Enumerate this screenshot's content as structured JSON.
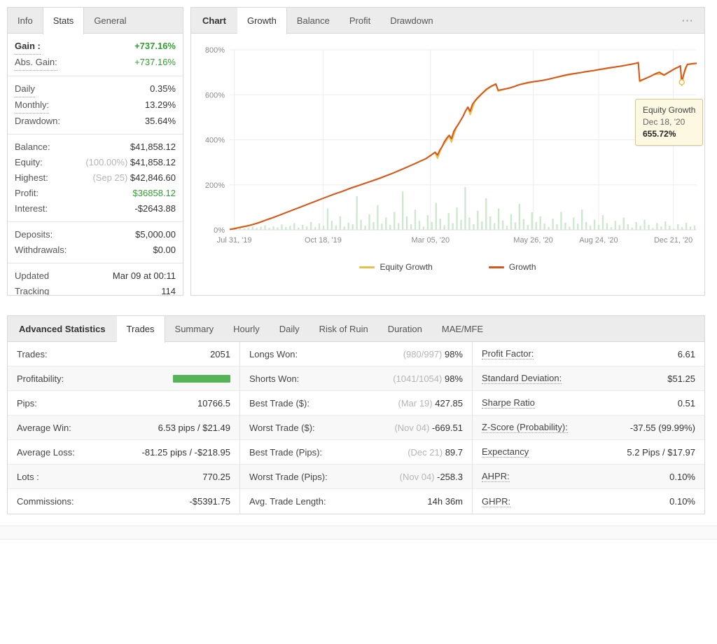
{
  "colors": {
    "green_text": "#2fa12f",
    "growth_line": "#d8551c",
    "equity_line": "#e6c14a",
    "volume_bar": "#cde8cd",
    "profitability_bar": "#56b456"
  },
  "left_panel": {
    "tabs": [
      {
        "label": "Info",
        "active": false
      },
      {
        "label": "Stats",
        "active": true
      },
      {
        "label": "General",
        "active": false
      }
    ],
    "groups": [
      {
        "rows": [
          {
            "label": "Gain :",
            "value": "+737.16%",
            "bold": true,
            "underline": true,
            "color": "green"
          },
          {
            "label": "Abs. Gain:",
            "value": "+737.16%",
            "underline": true,
            "color": "green"
          }
        ]
      },
      {
        "rows": [
          {
            "label": "Daily",
            "value": "0.35%",
            "underline": true
          },
          {
            "label": "Monthly:",
            "value": "13.29%",
            "underline": true
          },
          {
            "label": "Drawdown:",
            "value": "35.64%"
          }
        ]
      },
      {
        "rows": [
          {
            "label": "Balance:",
            "value": "$41,858.12"
          },
          {
            "label": "Equity:",
            "pre": "(100.00%)",
            "value": "$41,858.12"
          },
          {
            "label": "Highest:",
            "pre": "(Sep 25)",
            "value": "$42,846.60"
          },
          {
            "label": "Profit:",
            "value": "$36858.12",
            "color": "green"
          },
          {
            "label": "Interest:",
            "value": "-$2643.88"
          }
        ]
      },
      {
        "rows": [
          {
            "label": "Deposits:",
            "value": "$5,000.00"
          },
          {
            "label": "Withdrawals:",
            "value": "$0.00"
          }
        ]
      },
      {
        "rows": [
          {
            "label": "Updated",
            "value": "Mar 09 at 00:11"
          },
          {
            "label": "Tracking",
            "value": "114"
          }
        ]
      }
    ]
  },
  "chart_panel": {
    "title_tab": "Chart",
    "tabs": [
      {
        "label": "Growth",
        "active": true
      },
      {
        "label": "Balance",
        "active": false
      },
      {
        "label": "Profit",
        "active": false
      },
      {
        "label": "Drawdown",
        "active": false
      }
    ],
    "menu": "⋯",
    "tooltip": {
      "title": "Equity Growth",
      "date": "Dec 18, '20",
      "value": "655.72%"
    },
    "legend": [
      {
        "label": "Equity Growth",
        "color": "#e6c14a"
      },
      {
        "label": "Growth",
        "color": "#d8551c"
      }
    ]
  },
  "chart_data": {
    "type": "line",
    "title": "Growth",
    "ylabel": "%",
    "ylim": [
      0,
      800
    ],
    "yticks": [
      0,
      200,
      400,
      600,
      800
    ],
    "xtick_labels": [
      "Jul 31, '19",
      "Oct 18, '19",
      "Mar 05, '20",
      "May 26, '20",
      "Aug 24, '20",
      "Dec 21, '20"
    ],
    "xtick_pos": [
      0.01,
      0.2,
      0.43,
      0.65,
      0.79,
      0.95
    ],
    "grid": true,
    "legend_position": "bottom",
    "marker": [
      0.968,
      656
    ],
    "series": [
      {
        "name": "Equity Growth",
        "color": "#e6c14a",
        "width": 2,
        "points": [
          [
            0,
            2
          ],
          [
            0.05,
            24
          ],
          [
            0.1,
            60
          ],
          [
            0.15,
            100
          ],
          [
            0.2,
            140
          ],
          [
            0.25,
            178
          ],
          [
            0.3,
            214
          ],
          [
            0.35,
            252
          ],
          [
            0.4,
            297
          ],
          [
            0.42,
            316
          ],
          [
            0.43,
            330
          ],
          [
            0.44,
            345
          ],
          [
            0.445,
            318
          ],
          [
            0.455,
            370
          ],
          [
            0.465,
            400
          ],
          [
            0.47,
            418
          ],
          [
            0.475,
            390
          ],
          [
            0.485,
            452
          ],
          [
            0.495,
            488
          ],
          [
            0.505,
            525
          ],
          [
            0.51,
            545
          ],
          [
            0.515,
            512
          ],
          [
            0.525,
            570
          ],
          [
            0.54,
            604
          ],
          [
            0.555,
            630
          ],
          [
            0.57,
            647
          ],
          [
            0.575,
            616
          ],
          [
            0.59,
            625
          ],
          [
            0.62,
            644
          ],
          [
            0.65,
            657
          ],
          [
            0.68,
            667
          ],
          [
            0.71,
            682
          ],
          [
            0.74,
            694
          ],
          [
            0.77,
            704
          ],
          [
            0.8,
            714
          ],
          [
            0.83,
            724
          ],
          [
            0.86,
            735
          ],
          [
            0.875,
            742
          ],
          [
            0.878,
            658
          ],
          [
            0.89,
            671
          ],
          [
            0.91,
            691
          ],
          [
            0.925,
            692
          ],
          [
            0.93,
            686
          ],
          [
            0.95,
            711
          ],
          [
            0.965,
            728
          ],
          [
            0.968,
            642
          ],
          [
            0.972,
            686
          ],
          [
            0.98,
            734
          ],
          [
            1,
            739
          ]
        ]
      },
      {
        "name": "Growth",
        "color": "#d8551c",
        "width": 2,
        "points": [
          [
            0,
            2
          ],
          [
            0.01,
            5
          ],
          [
            0.02,
            10
          ],
          [
            0.03,
            14
          ],
          [
            0.04,
            18
          ],
          [
            0.05,
            24
          ],
          [
            0.06,
            30
          ],
          [
            0.07,
            37
          ],
          [
            0.08,
            45
          ],
          [
            0.09,
            52
          ],
          [
            0.1,
            60
          ],
          [
            0.11,
            68
          ],
          [
            0.12,
            76
          ],
          [
            0.13,
            84
          ],
          [
            0.14,
            92
          ],
          [
            0.15,
            100
          ],
          [
            0.16,
            108
          ],
          [
            0.17,
            116
          ],
          [
            0.18,
            124
          ],
          [
            0.19,
            132
          ],
          [
            0.2,
            140
          ],
          [
            0.21,
            148
          ],
          [
            0.22,
            156
          ],
          [
            0.23,
            163
          ],
          [
            0.24,
            170
          ],
          [
            0.25,
            178
          ],
          [
            0.26,
            186
          ],
          [
            0.27,
            193
          ],
          [
            0.28,
            200
          ],
          [
            0.29,
            207
          ],
          [
            0.3,
            214
          ],
          [
            0.31,
            221
          ],
          [
            0.32,
            228
          ],
          [
            0.33,
            236
          ],
          [
            0.34,
            244
          ],
          [
            0.35,
            252
          ],
          [
            0.36,
            261
          ],
          [
            0.37,
            270
          ],
          [
            0.38,
            279
          ],
          [
            0.39,
            288
          ],
          [
            0.4,
            297
          ],
          [
            0.41,
            307
          ],
          [
            0.42,
            316
          ],
          [
            0.43,
            330
          ],
          [
            0.44,
            345
          ],
          [
            0.445,
            332
          ],
          [
            0.45,
            355
          ],
          [
            0.455,
            370
          ],
          [
            0.46,
            392
          ],
          [
            0.465,
            408
          ],
          [
            0.47,
            420
          ],
          [
            0.475,
            405
          ],
          [
            0.48,
            438
          ],
          [
            0.485,
            455
          ],
          [
            0.49,
            470
          ],
          [
            0.495,
            488
          ],
          [
            0.5,
            505
          ],
          [
            0.505,
            528
          ],
          [
            0.51,
            545
          ],
          [
            0.515,
            527
          ],
          [
            0.52,
            558
          ],
          [
            0.525,
            572
          ],
          [
            0.53,
            585
          ],
          [
            0.54,
            605
          ],
          [
            0.55,
            625
          ],
          [
            0.56,
            638
          ],
          [
            0.57,
            648
          ],
          [
            0.575,
            620
          ],
          [
            0.58,
            622
          ],
          [
            0.59,
            626
          ],
          [
            0.6,
            630
          ],
          [
            0.61,
            637
          ],
          [
            0.62,
            645
          ],
          [
            0.63,
            650
          ],
          [
            0.64,
            655
          ],
          [
            0.65,
            658
          ],
          [
            0.66,
            661
          ],
          [
            0.67,
            664
          ],
          [
            0.68,
            668
          ],
          [
            0.69,
            673
          ],
          [
            0.7,
            678
          ],
          [
            0.71,
            683
          ],
          [
            0.72,
            688
          ],
          [
            0.73,
            692
          ],
          [
            0.74,
            695
          ],
          [
            0.75,
            698
          ],
          [
            0.76,
            702
          ],
          [
            0.77,
            705
          ],
          [
            0.78,
            708
          ],
          [
            0.79,
            712
          ],
          [
            0.8,
            715
          ],
          [
            0.81,
            719
          ],
          [
            0.82,
            722
          ],
          [
            0.83,
            725
          ],
          [
            0.84,
            728
          ],
          [
            0.85,
            732
          ],
          [
            0.86,
            736
          ],
          [
            0.87,
            740
          ],
          [
            0.875,
            743
          ],
          [
            0.878,
            662
          ],
          [
            0.885,
            668
          ],
          [
            0.89,
            672
          ],
          [
            0.9,
            681
          ],
          [
            0.91,
            692
          ],
          [
            0.92,
            700
          ],
          [
            0.925,
            694
          ],
          [
            0.93,
            688
          ],
          [
            0.935,
            694
          ],
          [
            0.94,
            700
          ],
          [
            0.95,
            712
          ],
          [
            0.955,
            718
          ],
          [
            0.96,
            722
          ],
          [
            0.965,
            729
          ],
          [
            0.968,
            656
          ],
          [
            0.972,
            690
          ],
          [
            0.976,
            718
          ],
          [
            0.98,
            735
          ],
          [
            0.99,
            738
          ],
          [
            1,
            740
          ]
        ]
      }
    ],
    "bars": {
      "color": "#cde8cd",
      "values": [
        5,
        8,
        12,
        6,
        10,
        15,
        8,
        14,
        20,
        9,
        16,
        11,
        24,
        13,
        18,
        30,
        10,
        22,
        15,
        35,
        12,
        28,
        18,
        95,
        40,
        20,
        60,
        15,
        32,
        25,
        150,
        45,
        18,
        70,
        35,
        110,
        28,
        55,
        22,
        80,
        30,
        170,
        60,
        25,
        90,
        40,
        15,
        65,
        35,
        120,
        50,
        20,
        75,
        30,
        100,
        45,
        190,
        55,
        25,
        85,
        38,
        140,
        60,
        30,
        95,
        42,
        18,
        70,
        33,
        115,
        48,
        22,
        78,
        35,
        60,
        28,
        12,
        50,
        25,
        80,
        32,
        15,
        55,
        28,
        90,
        35,
        18,
        45,
        22,
        65,
        30,
        12,
        40,
        20,
        55,
        25,
        10,
        35,
        18,
        45,
        22,
        8,
        30,
        15,
        38,
        18,
        6,
        25,
        12,
        32,
        15,
        20
      ]
    }
  },
  "stats_panel": {
    "title": "Advanced Statistics",
    "tabs": [
      {
        "label": "Trades",
        "active": true
      },
      {
        "label": "Summary",
        "active": false
      },
      {
        "label": "Hourly",
        "active": false
      },
      {
        "label": "Daily",
        "active": false
      },
      {
        "label": "Risk of Ruin",
        "active": false
      },
      {
        "label": "Duration",
        "active": false
      },
      {
        "label": "MAE/MFE",
        "active": false
      }
    ],
    "columns": [
      {
        "rows": [
          {
            "label": "Trades:",
            "value": "2051"
          },
          {
            "label": "Profitability:",
            "bar": true
          },
          {
            "label": "Pips:",
            "value": "10766.5"
          },
          {
            "label": "Average Win:",
            "value": "6.53 pips / $21.49"
          },
          {
            "label": "Average Loss:",
            "value": "-81.25 pips / -$218.95"
          },
          {
            "label": "Lots :",
            "value": "770.25"
          },
          {
            "label": "Commissions:",
            "value": "-$5391.75"
          }
        ]
      },
      {
        "rows": [
          {
            "label": "Longs Won:",
            "pre": "(980/997)",
            "value": "98%"
          },
          {
            "label": "Shorts Won:",
            "pre": "(1041/1054)",
            "value": "98%"
          },
          {
            "label": "Best Trade ($):",
            "pre": "(Mar 19)",
            "value": "427.85"
          },
          {
            "label": "Worst Trade ($):",
            "pre": "(Nov 04)",
            "value": "-669.51"
          },
          {
            "label": "Best Trade (Pips):",
            "pre": "(Dec 21)",
            "value": "89.7"
          },
          {
            "label": "Worst Trade (Pips):",
            "pre": "(Nov 04)",
            "value": "-258.3"
          },
          {
            "label": "Avg. Trade Length:",
            "value": "14h 36m"
          }
        ]
      },
      {
        "rows": [
          {
            "label": "Profit Factor:",
            "value": "6.61",
            "underline": true
          },
          {
            "label": "Standard Deviation:",
            "value": "$51.25",
            "underline": true
          },
          {
            "label": "Sharpe Ratio",
            "value": "0.51",
            "underline": true
          },
          {
            "label": "Z-Score (Probability):",
            "value": "-37.55 (99.99%)",
            "underline": true
          },
          {
            "label": "Expectancy",
            "value": "5.2 Pips / $17.97",
            "underline": true
          },
          {
            "label": "AHPR:",
            "value": "0.10%",
            "underline": true
          },
          {
            "label": "GHPR:",
            "value": "0.10%",
            "underline": true
          }
        ]
      }
    ]
  }
}
